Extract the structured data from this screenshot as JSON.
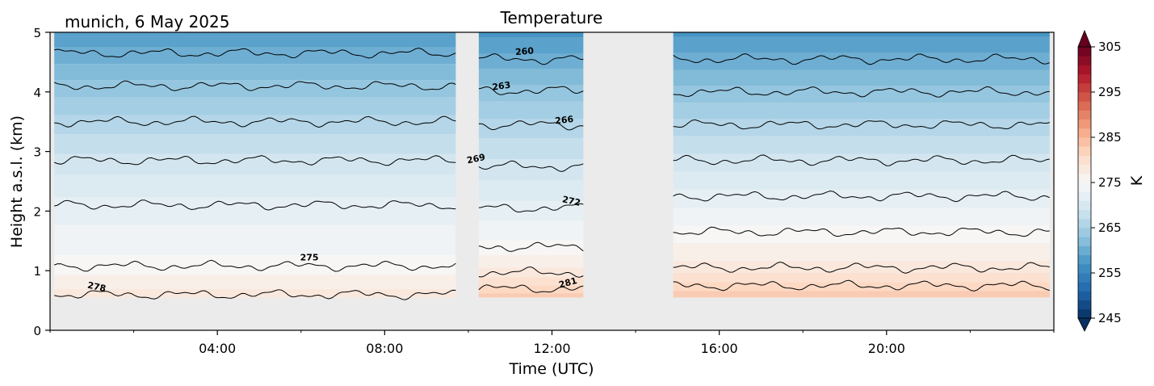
{
  "chart_data": {
    "type": "heatmap",
    "subtype": "filled-contour",
    "title": "Temperature",
    "subtitle": "munich, 6 May 2025",
    "xlabel": "Time (UTC)",
    "ylabel": "Height a.s.l. (km)",
    "xlim": [
      0,
      24
    ],
    "ylim": [
      0,
      5
    ],
    "x_tick_values": [
      4,
      8,
      12,
      16,
      20
    ],
    "x_tick_labels": [
      "04:00",
      "08:00",
      "12:00",
      "16:00",
      "20:00"
    ],
    "y_tick_values": [
      0,
      1,
      2,
      3,
      4,
      5
    ],
    "y_tick_labels": [
      "0",
      "1",
      "2",
      "3",
      "4",
      "5"
    ],
    "colorbar": {
      "label": "K",
      "range": [
        245,
        305
      ],
      "tick_values": [
        245,
        255,
        265,
        275,
        285,
        295,
        305
      ],
      "tick_labels": [
        "245",
        "255",
        "265",
        "275",
        "285",
        "295",
        "305"
      ],
      "colormap": "RdBu_r",
      "extend": "both"
    },
    "no_data_color": "#ebebeb",
    "data_min_height_km": 0.55,
    "valid_time_segments": [
      [
        0.1,
        9.7
      ],
      [
        10.25,
        12.75
      ],
      [
        14.9,
        23.9
      ]
    ],
    "contour_levels": [
      {
        "value": 260,
        "heights_km": [
          4.65,
          4.55,
          4.55
        ]
      },
      {
        "value": 263,
        "heights_km": [
          4.1,
          4.02,
          4.0
        ]
      },
      {
        "value": 266,
        "heights_km": [
          3.5,
          3.45,
          3.45
        ]
      },
      {
        "value": 269,
        "heights_km": [
          2.85,
          2.75,
          2.85
        ]
      },
      {
        "value": 272,
        "heights_km": [
          2.1,
          2.05,
          2.25
        ]
      },
      {
        "value": 275,
        "heights_km": [
          1.08,
          1.4,
          1.65
        ]
      },
      {
        "value": 278,
        "heights_km": [
          0.6,
          0.97,
          1.05
        ]
      },
      {
        "value": 281,
        "heights_km": [
          null,
          0.7,
          0.75
        ]
      }
    ],
    "contour_labels": [
      "260",
      "263",
      "266",
      "269",
      "272",
      "275",
      "278",
      "281"
    ],
    "grid": false,
    "legend": "none"
  }
}
